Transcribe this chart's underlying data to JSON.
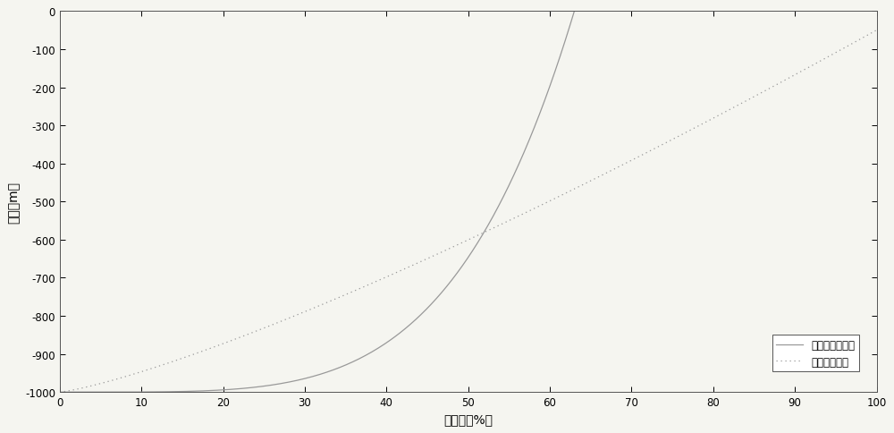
{
  "title": "",
  "xlabel": "热损失（%）",
  "ylabel": "深度（m）",
  "xlim": [
    0,
    100
  ],
  "ylim": [
    -1000,
    0
  ],
  "xticks": [
    0,
    10,
    20,
    30,
    40,
    50,
    60,
    70,
    80,
    90,
    100
  ],
  "yticks": [
    0,
    -100,
    -200,
    -300,
    -400,
    -500,
    -600,
    -700,
    -800,
    -900,
    -1000
  ],
  "legend_labels": [
    "隔热油管热损失",
    "光油管热损失"
  ],
  "line1_color": "#999999",
  "line2_color": "#999999",
  "background_color": "#f5f5f0",
  "figsize": [
    10.0,
    4.85
  ],
  "dpi": 100,
  "line1_exponent": 4.5,
  "line1_xmax": 63.0,
  "line2_exponent": 1.25,
  "line2_yend": -50
}
